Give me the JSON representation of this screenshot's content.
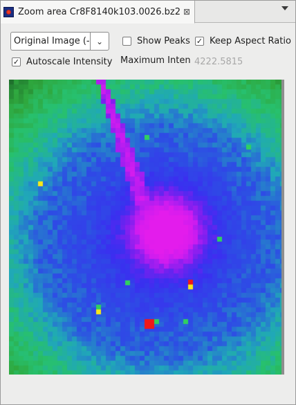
{
  "tab": {
    "title": "Zoom area Cr8F8140k103.0026.bz2",
    "close_glyph": "⊠",
    "icon": "zoom-view-icon"
  },
  "view_menu_icon": "view-menu-chevron-icon",
  "controls": {
    "image_mode": {
      "value": "Original Image (-",
      "arrow": "⌄"
    },
    "show_peaks": {
      "label": "Show Peaks",
      "checked": false
    },
    "keep_aspect_ratio": {
      "label": "Keep Aspect Ratio",
      "checked": true
    },
    "autoscale_intensity": {
      "label": "Autoscale Intensity",
      "checked": true
    },
    "maximum_intensity": {
      "label": "Maximum Inten",
      "value": "4222.5815"
    }
  },
  "image": {
    "colormap": [
      "#1e6e2c",
      "#2fa83e",
      "#27c06e",
      "#20a8b8",
      "#2d4ee4",
      "#3a2ff0",
      "#7a20ef",
      "#c81cf0",
      "#e31cec"
    ],
    "hot_colors": {
      "red": "#f01818",
      "yellow": "#f8e81a",
      "green": "#30d060"
    }
  }
}
